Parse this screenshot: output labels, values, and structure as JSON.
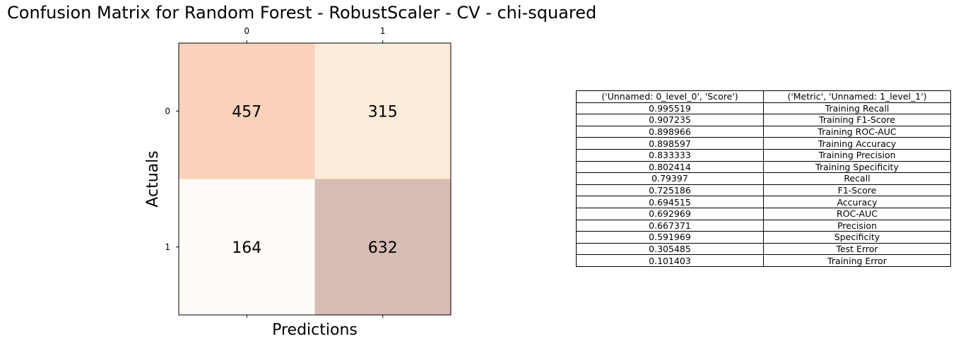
{
  "chart_data": [
    {
      "type": "heatmap",
      "title": "Confusion Matrix for Random Forest - RobustScaler - CV - chi-squared",
      "xlabel": "Predictions",
      "ylabel": "Actuals",
      "x_tick_labels": [
        "0",
        "1"
      ],
      "y_tick_labels": [
        "0",
        "1"
      ],
      "values": [
        [
          457,
          315
        ],
        [
          164,
          632
        ]
      ],
      "cell_colors": [
        [
          "#f9d2b9",
          "#fdebd9"
        ],
        [
          "#fffbf7",
          "#d7bdb4"
        ]
      ]
    },
    {
      "type": "table",
      "columns": [
        "('Unnamed: 0_level_0', 'Score')",
        "('Metric', 'Unnamed: 1_level_1')"
      ],
      "rows": [
        [
          "0.995519",
          "Training Recall"
        ],
        [
          "0.907235",
          "Training F1-Score"
        ],
        [
          "0.898966",
          "Training ROC-AUC"
        ],
        [
          "0.898597",
          "Training Accuracy"
        ],
        [
          "0.833333",
          "Training Precision"
        ],
        [
          "0.802414",
          "Training Specificity"
        ],
        [
          "0.79397",
          "Recall"
        ],
        [
          "0.725186",
          "F1-Score"
        ],
        [
          "0.694515",
          "Accuracy"
        ],
        [
          "0.692969",
          "ROC-AUC"
        ],
        [
          "0.667371",
          "Precision"
        ],
        [
          "0.591969",
          "Specificity"
        ],
        [
          "0.305485",
          "Test Error"
        ],
        [
          "0.101403",
          "Training Error"
        ]
      ]
    }
  ]
}
